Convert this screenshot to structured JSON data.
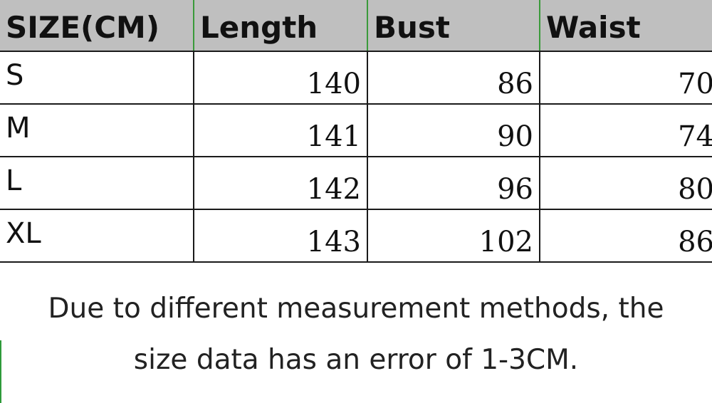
{
  "table": {
    "headers": [
      "SIZE(CM)",
      "Length",
      "Bust",
      "Waist"
    ],
    "rows": [
      {
        "size": "S",
        "length": "140",
        "bust": "86",
        "waist": "70"
      },
      {
        "size": "M",
        "length": "141",
        "bust": "90",
        "waist": "74"
      },
      {
        "size": "L",
        "length": "142",
        "bust": "96",
        "waist": "80"
      },
      {
        "size": "XL",
        "length": "143",
        "bust": "102",
        "waist": "86"
      }
    ]
  },
  "note": {
    "line1": "Due to different measurement methods, the",
    "line2": "size data has an error of 1-3CM."
  },
  "colors": {
    "header_background": "#bfbfbf",
    "grid_line": "#1a1a1a",
    "accent_green": "#2e9a3a",
    "text": "#111111"
  }
}
